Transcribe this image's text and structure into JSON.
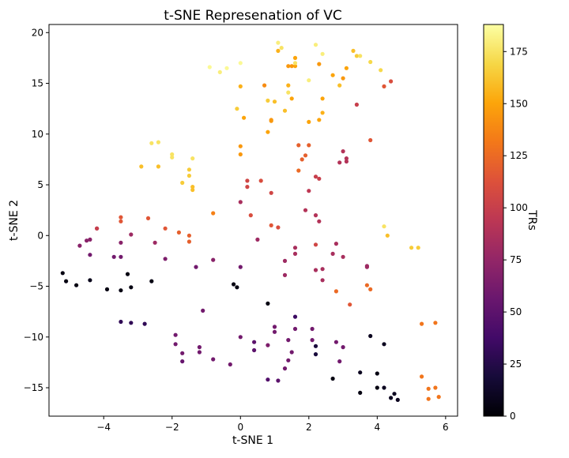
{
  "chart_data": {
    "type": "scatter",
    "title": "t-SNE Represenation of VC",
    "xlabel": "t-SNE 1",
    "ylabel": "t-SNE 2",
    "xlim": [
      -5.6,
      6.35
    ],
    "ylim": [
      -17.8,
      20.8
    ],
    "xticks": [
      -4,
      -2,
      0,
      2,
      4,
      6
    ],
    "yticks": [
      -15,
      -10,
      -5,
      0,
      5,
      10,
      15,
      20
    ],
    "grid": false,
    "colormap": "inferno",
    "colorbar": {
      "label": "TRs",
      "range": [
        0,
        188
      ],
      "ticks": [
        0,
        25,
        50,
        75,
        100,
        125,
        150,
        175
      ]
    },
    "points": [
      [
        -5.2,
        -3.7,
        5
      ],
      [
        -5.1,
        -4.5,
        5
      ],
      [
        -4.8,
        -4.9,
        5
      ],
      [
        -4.4,
        -4.4,
        8
      ],
      [
        -3.9,
        -5.3,
        5
      ],
      [
        -3.5,
        -5.4,
        5
      ],
      [
        -3.3,
        -3.8,
        5
      ],
      [
        -3.2,
        -5.1,
        5
      ],
      [
        -2.6,
        -4.5,
        5
      ],
      [
        -0.2,
        -4.8,
        5
      ],
      [
        -0.1,
        -5.1,
        5
      ],
      [
        0.8,
        -6.7,
        5
      ],
      [
        -3.5,
        -8.5,
        30
      ],
      [
        -3.2,
        -8.6,
        30
      ],
      [
        -2.8,
        -8.7,
        30
      ],
      [
        2.7,
        -14.1,
        5
      ],
      [
        3.5,
        -15.5,
        5
      ],
      [
        3.5,
        -13.5,
        10
      ],
      [
        4.0,
        -13.6,
        5
      ],
      [
        4.0,
        -15.0,
        5
      ],
      [
        4.2,
        -15.0,
        10
      ],
      [
        4.4,
        -16.0,
        10
      ],
      [
        4.5,
        -15.6,
        10
      ],
      [
        4.6,
        -16.2,
        10
      ],
      [
        3.8,
        -9.9,
        10
      ],
      [
        4.2,
        -10.7,
        10
      ],
      [
        2.2,
        -10.9,
        20
      ],
      [
        2.2,
        -11.7,
        20
      ],
      [
        1.6,
        -8.0,
        35
      ],
      [
        -1.7,
        -12.4,
        55
      ],
      [
        -1.9,
        -9.8,
        60
      ],
      [
        -1.9,
        -10.7,
        60
      ],
      [
        -1.7,
        -11.6,
        60
      ],
      [
        -1.2,
        -11.0,
        60
      ],
      [
        -1.2,
        -11.5,
        60
      ],
      [
        -0.8,
        -12.2,
        60
      ],
      [
        -0.3,
        -12.7,
        60
      ],
      [
        0.0,
        -10.0,
        60
      ],
      [
        0.4,
        -10.5,
        50
      ],
      [
        0.4,
        -11.3,
        50
      ],
      [
        0.8,
        -14.2,
        45
      ],
      [
        1.0,
        -9.0,
        60
      ],
      [
        1.0,
        -9.5,
        60
      ],
      [
        1.1,
        -14.3,
        50
      ],
      [
        1.3,
        -13.1,
        60
      ],
      [
        1.4,
        -10.3,
        60
      ],
      [
        1.5,
        -11.5,
        60
      ],
      [
        1.4,
        -12.3,
        60
      ],
      [
        1.6,
        -9.2,
        60
      ],
      [
        2.1,
        -10.3,
        60
      ],
      [
        2.1,
        -9.2,
        60
      ],
      [
        2.8,
        -10.5,
        60
      ],
      [
        2.9,
        -12.4,
        60
      ],
      [
        3.0,
        -11.0,
        60
      ],
      [
        -4.4,
        -1.9,
        60
      ],
      [
        -3.7,
        -2.1,
        60
      ],
      [
        -3.5,
        -2.1,
        60
      ],
      [
        -2.2,
        -2.3,
        65
      ],
      [
        -3.5,
        -0.7,
        70
      ],
      [
        -0.8,
        -2.4,
        70
      ],
      [
        -1.3,
        -3.1,
        60
      ],
      [
        -1.1,
        -7.4,
        60
      ],
      [
        0.0,
        -3.1,
        60
      ],
      [
        0.8,
        -10.8,
        65
      ],
      [
        -4.7,
        -1.0,
        70
      ],
      [
        -4.5,
        -0.5,
        70
      ],
      [
        -4.4,
        -0.4,
        70
      ],
      [
        -4.2,
        0.7,
        80
      ],
      [
        -3.2,
        0.1,
        80
      ],
      [
        -2.5,
        -0.7,
        80
      ],
      [
        0.5,
        -0.4,
        80
      ],
      [
        0.0,
        3.3,
        85
      ],
      [
        1.3,
        -2.5,
        80
      ],
      [
        1.3,
        -3.9,
        80
      ],
      [
        1.6,
        -1.2,
        85
      ],
      [
        1.6,
        -1.8,
        85
      ],
      [
        2.2,
        -3.4,
        85
      ],
      [
        2.4,
        -3.3,
        85
      ],
      [
        2.4,
        -4.4,
        85
      ],
      [
        2.7,
        -1.8,
        85
      ],
      [
        2.8,
        -0.8,
        85
      ],
      [
        3.0,
        -2.1,
        85
      ],
      [
        3.7,
        -3.0,
        80
      ],
      [
        3.7,
        -3.1,
        80
      ],
      [
        1.9,
        2.5,
        90
      ],
      [
        2.2,
        2.0,
        90
      ],
      [
        2.3,
        1.4,
        90
      ],
      [
        2.0,
        4.4,
        95
      ],
      [
        2.9,
        7.2,
        90
      ],
      [
        3.0,
        8.3,
        90
      ],
      [
        3.1,
        7.3,
        90
      ],
      [
        3.1,
        7.6,
        90
      ],
      [
        2.2,
        5.8,
        100
      ],
      [
        2.3,
        5.6,
        100
      ],
      [
        3.4,
        12.9,
        100
      ],
      [
        2.2,
        -0.9,
        105
      ],
      [
        0.2,
        5.4,
        105
      ],
      [
        0.2,
        4.8,
        105
      ],
      [
        0.9,
        4.2,
        105
      ],
      [
        1.1,
        0.8,
        110
      ],
      [
        0.3,
        2.0,
        110
      ],
      [
        -4.2,
        0.7,
        100
      ],
      [
        -3.5,
        1.8,
        115
      ],
      [
        -3.5,
        1.4,
        115
      ],
      [
        -2.7,
        1.7,
        115
      ],
      [
        -2.2,
        0.7,
        115
      ],
      [
        -1.8,
        0.3,
        120
      ],
      [
        -1.5,
        0.0,
        120
      ],
      [
        -1.5,
        -0.6,
        120
      ],
      [
        0.6,
        5.4,
        110
      ],
      [
        0.9,
        1.0,
        115
      ],
      [
        1.7,
        8.9,
        120
      ],
      [
        1.8,
        7.5,
        120
      ],
      [
        1.9,
        7.9,
        120
      ],
      [
        2.0,
        8.9,
        120
      ],
      [
        1.7,
        6.4,
        125
      ],
      [
        3.8,
        9.4,
        115
      ],
      [
        2.8,
        -5.5,
        125
      ],
      [
        3.2,
        -6.8,
        115
      ],
      [
        3.7,
        -4.9,
        125
      ],
      [
        3.8,
        -5.3,
        125
      ],
      [
        4.2,
        14.7,
        115
      ],
      [
        4.4,
        15.2,
        110
      ],
      [
        5.3,
        -8.7,
        130
      ],
      [
        5.7,
        -8.6,
        130
      ],
      [
        5.3,
        -13.9,
        130
      ],
      [
        5.5,
        -15.1,
        130
      ],
      [
        5.7,
        -15.0,
        130
      ],
      [
        5.5,
        -16.1,
        130
      ],
      [
        5.8,
        -15.9,
        130
      ],
      [
        -0.8,
        2.2,
        135
      ],
      [
        0.0,
        8.8,
        145
      ],
      [
        0.0,
        8.0,
        145
      ],
      [
        0.1,
        11.6,
        150
      ],
      [
        0.0,
        14.7,
        155
      ],
      [
        0.7,
        14.8,
        140
      ],
      [
        0.8,
        10.2,
        150
      ],
      [
        0.9,
        11.3,
        145
      ],
      [
        0.9,
        11.4,
        145
      ],
      [
        1.0,
        13.2,
        160
      ],
      [
        1.1,
        18.2,
        155
      ],
      [
        1.3,
        12.3,
        160
      ],
      [
        1.4,
        14.8,
        155
      ],
      [
        1.4,
        16.7,
        145
      ],
      [
        1.5,
        16.7,
        145
      ],
      [
        1.5,
        13.5,
        150
      ],
      [
        1.6,
        17.5,
        150
      ],
      [
        1.6,
        16.7,
        150
      ],
      [
        2.0,
        11.2,
        150
      ],
      [
        2.3,
        11.4,
        150
      ],
      [
        2.3,
        16.9,
        145
      ],
      [
        2.4,
        13.5,
        150
      ],
      [
        2.4,
        12.1,
        155
      ],
      [
        2.7,
        15.8,
        150
      ],
      [
        2.9,
        14.8,
        160
      ],
      [
        3.0,
        15.5,
        145
      ],
      [
        3.1,
        16.5,
        150
      ],
      [
        3.3,
        18.2,
        160
      ],
      [
        3.4,
        17.7,
        165
      ],
      [
        3.8,
        17.1,
        170
      ],
      [
        4.1,
        16.3,
        170
      ],
      [
        4.3,
        0.0,
        160
      ],
      [
        5.0,
        -1.2,
        165
      ],
      [
        5.2,
        -1.2,
        165
      ],
      [
        4.2,
        0.9,
        175
      ],
      [
        -2.9,
        6.8,
        160
      ],
      [
        -2.4,
        6.8,
        160
      ],
      [
        -1.7,
        5.2,
        165
      ],
      [
        -1.5,
        6.5,
        165
      ],
      [
        -1.5,
        5.9,
        165
      ],
      [
        -1.4,
        4.8,
        160
      ],
      [
        -1.4,
        4.5,
        160
      ],
      [
        -2.6,
        9.1,
        175
      ],
      [
        -2.4,
        9.2,
        175
      ],
      [
        -2.0,
        7.7,
        175
      ],
      [
        -2.0,
        8.0,
        175
      ],
      [
        -1.4,
        7.6,
        175
      ],
      [
        -0.9,
        16.6,
        185
      ],
      [
        -0.6,
        16.1,
        180
      ],
      [
        -0.4,
        16.5,
        185
      ],
      [
        -0.1,
        12.5,
        165
      ],
      [
        0.0,
        17.0,
        185
      ],
      [
        0.8,
        13.3,
        165
      ],
      [
        1.1,
        19.0,
        180
      ],
      [
        1.2,
        18.5,
        175
      ],
      [
        1.4,
        14.1,
        175
      ],
      [
        1.6,
        17.0,
        175
      ],
      [
        2.0,
        15.3,
        180
      ],
      [
        2.2,
        18.8,
        180
      ],
      [
        2.4,
        17.9,
        180
      ],
      [
        3.5,
        17.7,
        175
      ]
    ]
  }
}
